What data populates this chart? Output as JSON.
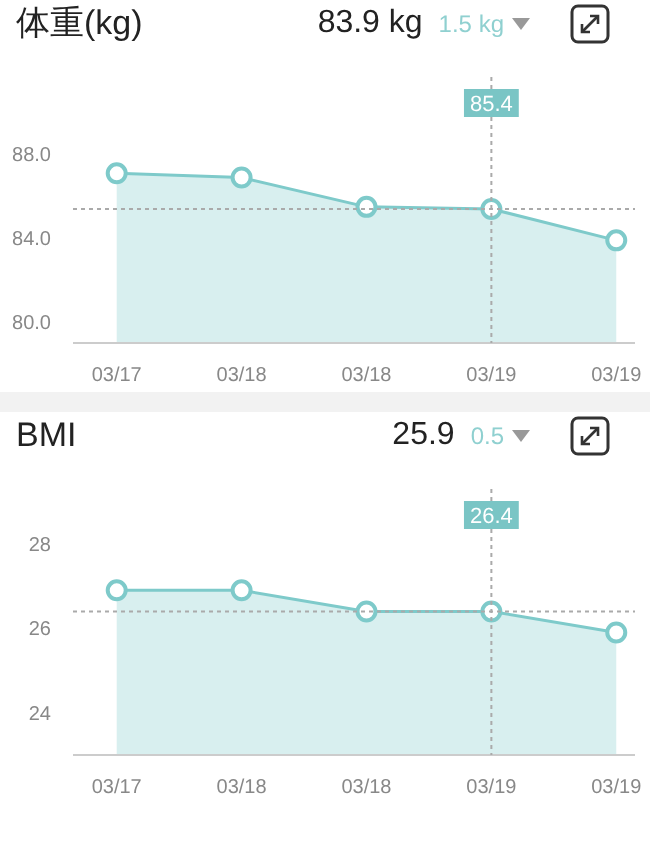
{
  "chart_data": [
    {
      "type": "area",
      "title": "体重(kg)",
      "annotations": [
        "83.9 kg",
        "1.5 kg"
      ],
      "categories": [
        "03/17",
        "03/18",
        "03/18",
        "03/19",
        "03/19"
      ],
      "series": [
        {
          "color": "#7ecaca",
          "values": [
            87.1,
            86.9,
            85.5,
            85.4,
            83.9
          ]
        }
      ],
      "ylim": [
        79,
        91.7
      ],
      "yticks": [
        {
          "value": 80,
          "label": "80.0"
        },
        {
          "value": 84,
          "label": "84.0"
        },
        {
          "value": 88,
          "label": "88.0"
        }
      ],
      "ref_lines": [
        {
          "axis": "y",
          "value": 85.4,
          "line_style": "dotted",
          "color": "#aaaaaa"
        },
        {
          "axis": "x",
          "value": "03/19",
          "label": "85.4",
          "line_style": "dotted",
          "color": "#aaaaaa"
        }
      ],
      "marker": "circle",
      "grid": false
    },
    {
      "type": "area",
      "title": "BMI",
      "annotations": [
        "25.9",
        "0.5"
      ],
      "categories": [
        "03/17",
        "03/18",
        "03/18",
        "03/19",
        "03/19"
      ],
      "series": [
        {
          "color": "#7ecaca",
          "values": [
            26.9,
            26.9,
            26.4,
            26.4,
            25.9
          ]
        }
      ],
      "ylim": [
        23,
        29.3
      ],
      "yticks": [
        24,
        26,
        28
      ],
      "ref_lines": [
        {
          "axis": "y",
          "value": 26.4,
          "line_style": "dotted",
          "color": "#aaaaaa"
        },
        {
          "axis": "x",
          "value": "03/19",
          "label": "26.4",
          "line_style": "dotted",
          "color": "#aaaaaa"
        }
      ],
      "marker": "circle",
      "grid": false
    }
  ]
}
